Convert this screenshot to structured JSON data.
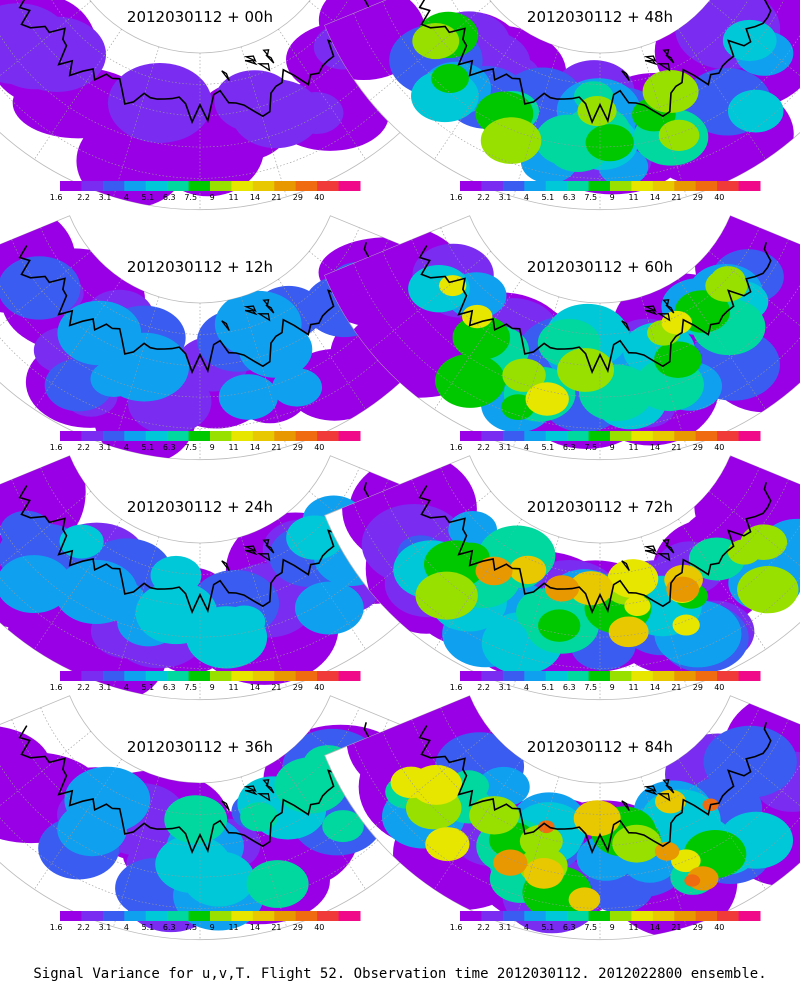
{
  "caption": "Signal Variance for u,v,T. Flight 52. Observation time 2012030112. 2012022800 ensemble.",
  "chart_data": {
    "type": "heatmap",
    "colorbar": {
      "colors": [
        "#9a00e6",
        "#7a2cf0",
        "#3a5cf0",
        "#10a0f0",
        "#00c8d8",
        "#00d8a0",
        "#00c800",
        "#98e000",
        "#e6e600",
        "#e8c800",
        "#e89800",
        "#f06a10",
        "#f03a3a",
        "#f00a8a"
      ],
      "ticks": [
        "1.6",
        "2.2",
        "3.1",
        "4",
        "5.1",
        "6.3",
        "7.5",
        "9",
        "11",
        "14",
        "21",
        "29",
        "40"
      ]
    },
    "panels": [
      {
        "title": "2012030112 + 00h",
        "intensity": 0.15
      },
      {
        "title": "2012030112 + 48h",
        "intensity": 0.55
      },
      {
        "title": "2012030112 + 12h",
        "intensity": 0.25
      },
      {
        "title": "2012030112 + 60h",
        "intensity": 0.65
      },
      {
        "title": "2012030112 + 24h",
        "intensity": 0.35
      },
      {
        "title": "2012030112 + 72h",
        "intensity": 0.75
      },
      {
        "title": "2012030112 + 36h",
        "intensity": 0.45
      },
      {
        "title": "2012030112 + 84h",
        "intensity": 0.85
      }
    ]
  }
}
